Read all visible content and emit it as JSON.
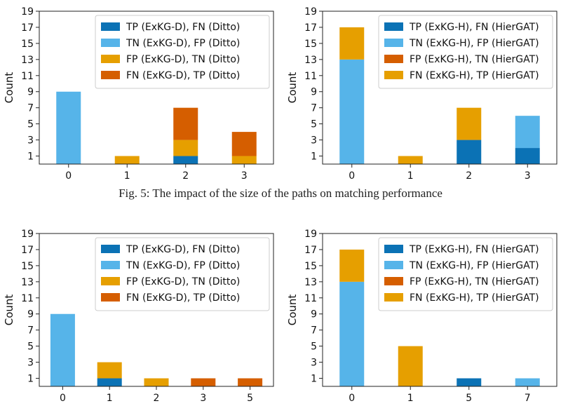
{
  "caption": "Fig. 5: The impact of the size of the paths on matching performance",
  "colors": {
    "dark_blue": "#0b72b5",
    "light_blue": "#56b4e9",
    "orange": "#e69f00",
    "vermillion": "#d55e00"
  },
  "chart_data": [
    {
      "type": "bar",
      "stacked": true,
      "ylabel": "Count",
      "categories": [
        "0",
        "1",
        "2",
        "3"
      ],
      "yticks": [
        1,
        3,
        5,
        7,
        9,
        11,
        13,
        15,
        17,
        19
      ],
      "ylim": [
        0,
        19
      ],
      "legend_position": "top-right",
      "series": [
        {
          "name": "TP (ExKG-D), FN  (Ditto)",
          "color": "#0b72b5",
          "values": [
            0,
            0,
            1,
            0
          ]
        },
        {
          "name": "TN (ExKG-D), FP  (Ditto)",
          "color": "#56b4e9",
          "values": [
            9,
            0,
            0,
            0
          ]
        },
        {
          "name": "FP (ExKG-D), TN  (Ditto)",
          "color": "#e69f00",
          "values": [
            0,
            1,
            2,
            1
          ]
        },
        {
          "name": "FN (ExKG-D), TP  (Ditto)",
          "color": "#d55e00",
          "values": [
            0,
            0,
            4,
            3
          ]
        }
      ]
    },
    {
      "type": "bar",
      "stacked": true,
      "ylabel": "Count",
      "categories": [
        "0",
        "1",
        "2",
        "3"
      ],
      "yticks": [
        1,
        3,
        5,
        7,
        9,
        11,
        13,
        15,
        17,
        19
      ],
      "ylim": [
        0,
        19
      ],
      "legend_position": "top-right",
      "series": [
        {
          "name": "TP (ExKG-H), FN (HierGAT)",
          "color": "#0b72b5",
          "values": [
            0,
            0,
            3,
            2
          ]
        },
        {
          "name": "TN (ExKG-H), FP (HierGAT)",
          "color": "#56b4e9",
          "values": [
            13,
            0,
            0,
            4
          ]
        },
        {
          "name": "FP (ExKG-H), TN (HierGAT)",
          "color": "#d55e00",
          "values": [
            0,
            0,
            0,
            0
          ]
        },
        {
          "name": "FN (ExKG-H), TP (HierGAT)",
          "color": "#e69f00",
          "values": [
            4,
            1,
            4,
            0
          ]
        }
      ]
    },
    {
      "type": "bar",
      "stacked": true,
      "ylabel": "Count",
      "categories": [
        "0",
        "1",
        "2",
        "3",
        "5"
      ],
      "yticks": [
        1,
        3,
        5,
        7,
        9,
        11,
        13,
        15,
        17,
        19
      ],
      "ylim": [
        0,
        19
      ],
      "legend_position": "top-right",
      "series": [
        {
          "name": "TP (ExKG-D), FN (Ditto)",
          "color": "#0b72b5",
          "values": [
            0,
            1,
            0,
            0,
            0
          ]
        },
        {
          "name": "TN (ExKG-D), FP (Ditto)",
          "color": "#56b4e9",
          "values": [
            9,
            0,
            0,
            0,
            0
          ]
        },
        {
          "name": "FP (ExKG-D), TN (Ditto)",
          "color": "#e69f00",
          "values": [
            0,
            2,
            1,
            0,
            0
          ]
        },
        {
          "name": "FN (ExKG-D), TP (Ditto)",
          "color": "#d55e00",
          "values": [
            0,
            0,
            0,
            1,
            1
          ]
        }
      ]
    },
    {
      "type": "bar",
      "stacked": true,
      "ylabel": "Count",
      "categories": [
        "0",
        "1",
        "5",
        "7"
      ],
      "yticks": [
        1,
        3,
        5,
        7,
        9,
        11,
        13,
        15,
        17,
        19
      ],
      "ylim": [
        0,
        19
      ],
      "legend_position": "top-right",
      "series": [
        {
          "name": "TP (ExKG-H), FN (HierGAT)",
          "color": "#0b72b5",
          "values": [
            0,
            0,
            1,
            0
          ]
        },
        {
          "name": "TN (ExKG-H), FP (HierGAT)",
          "color": "#56b4e9",
          "values": [
            13,
            0,
            0,
            1
          ]
        },
        {
          "name": "FP (ExKG-H), TN (HierGAT)",
          "color": "#d55e00",
          "values": [
            0,
            0,
            0,
            0
          ]
        },
        {
          "name": "FN (ExKG-H), TP (HierGAT)",
          "color": "#e69f00",
          "values": [
            4,
            5,
            0,
            0
          ]
        }
      ]
    }
  ]
}
